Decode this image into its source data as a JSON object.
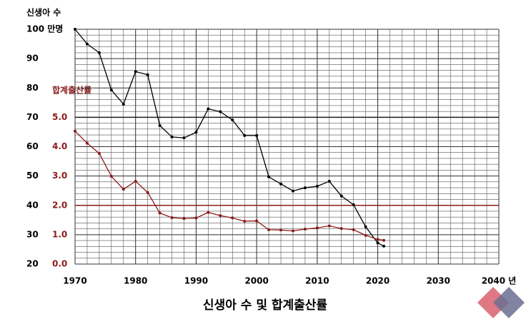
{
  "chart_data": {
    "type": "line",
    "title": "신생아 수 및 합계출산률",
    "x": [
      1970,
      1972,
      1974,
      1976,
      1978,
      1980,
      1982,
      1984,
      1986,
      1988,
      1990,
      1992,
      1994,
      1996,
      1998,
      2000,
      2002,
      2004,
      2006,
      2008,
      2010,
      2012,
      2014,
      2016,
      2018,
      2020,
      2021
    ],
    "series": [
      {
        "name": "신생아 수",
        "color": "#000000",
        "axis": "y",
        "values": [
          100,
          95,
          92,
          79.3,
          74.5,
          85.6,
          84.5,
          67.2,
          63.3,
          63.0,
          64.9,
          72.9,
          71.9,
          69.1,
          63.8,
          63.8,
          49.7,
          47.3,
          44.9,
          46.0,
          46.5,
          48.2,
          43.2,
          40.2,
          32.7,
          27.2,
          26.1
        ]
      },
      {
        "name": "합계출산률",
        "color": "#8b1a1a",
        "axis": "y2",
        "values": [
          4.53,
          4.12,
          3.77,
          2.99,
          2.55,
          2.82,
          2.44,
          1.74,
          1.58,
          1.55,
          1.57,
          1.76,
          1.65,
          1.57,
          1.46,
          1.47,
          1.17,
          1.16,
          1.13,
          1.19,
          1.23,
          1.3,
          1.21,
          1.17,
          0.98,
          0.84,
          0.81
        ]
      }
    ],
    "xlim": [
      1970,
      2040
    ],
    "xticks": [
      1970,
      1980,
      1990,
      2000,
      2010,
      2020,
      2030,
      {
        "value": 2040,
        "label": "2040 년"
      }
    ],
    "ylim": [
      20,
      100
    ],
    "yticks": [
      20,
      30,
      40,
      50,
      60,
      70,
      80,
      90,
      {
        "value": 100,
        "label": "100 만명"
      }
    ],
    "y2lim": [
      0,
      8
    ],
    "y2ticks": [
      {
        "value": 0,
        "label": "0.0"
      },
      {
        "value": 1,
        "label": "1.0"
      },
      {
        "value": 2,
        "label": "2.0"
      },
      {
        "value": 3,
        "label": "3.0"
      },
      {
        "value": 4,
        "label": "4.0"
      },
      {
        "value": 5,
        "label": "5.0"
      }
    ],
    "grid": true
  }
}
